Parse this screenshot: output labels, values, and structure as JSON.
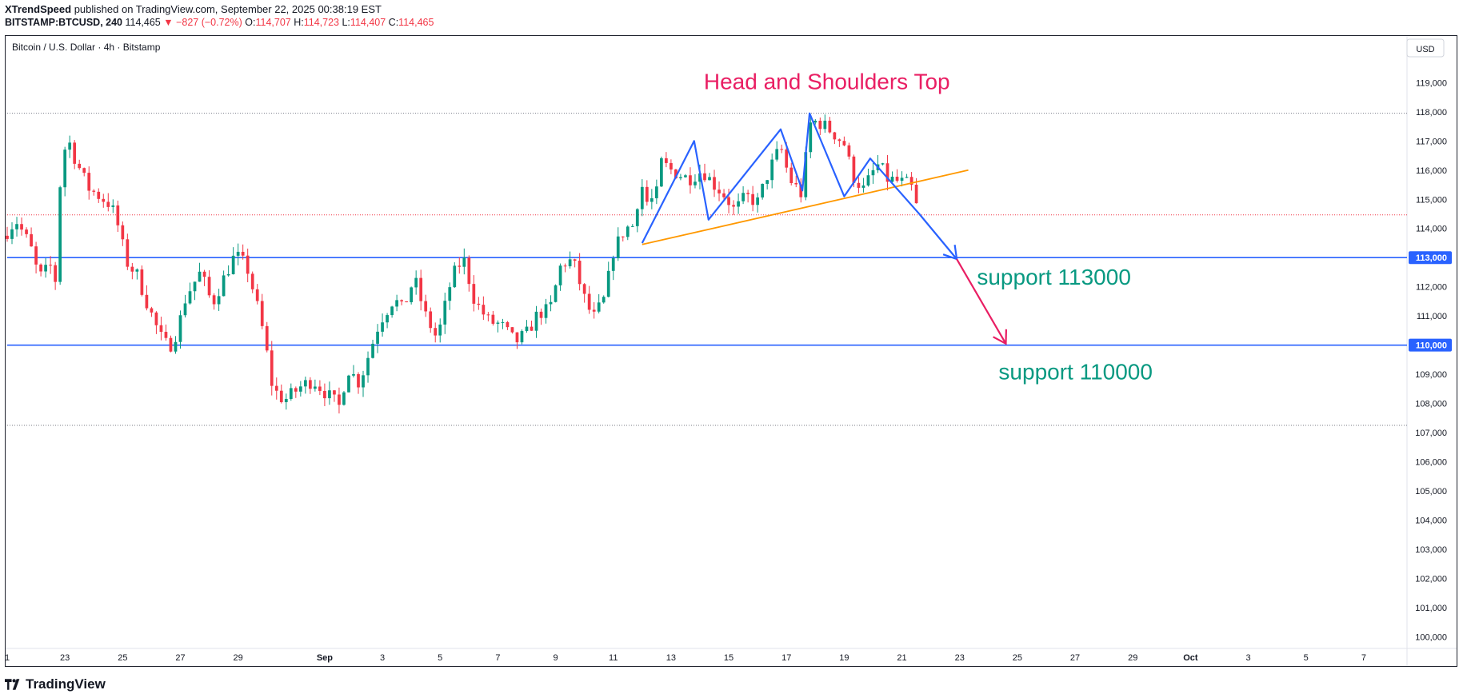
{
  "header": {
    "author": "XTrendSpeed",
    "published_text": "published on TradingView.com, September 22, 2025 00:38:19 EST",
    "symbol": "BITSTAMP:BTCUSD, 240",
    "last": "114,465",
    "change": "▼ −827 (−0.72%)",
    "o_label": "O:",
    "o_value": "114,707",
    "h_label": "H:",
    "h_value": "114,723",
    "l_label": "L:",
    "l_value": "114,407",
    "c_label": "C:",
    "c_value": "114,465"
  },
  "footer": {
    "brand": "TradingView"
  },
  "chart_data": {
    "type": "candlestick",
    "title": "Bitcoin / U.S. Dollar · 4h · Bitstamp",
    "currency": "USD",
    "ylim": [
      99600,
      120600
    ],
    "y_ticks": [
      100000,
      101000,
      102000,
      103000,
      104000,
      105000,
      106000,
      107000,
      108000,
      109000,
      110000,
      111000,
      112000,
      113000,
      114000,
      115000,
      116000,
      117000,
      118000,
      119000
    ],
    "y_tick_labels": [
      "100,000",
      "101,000",
      "102,000",
      "103,000",
      "104,000",
      "105,000",
      "106,000",
      "107,000",
      "108,000",
      "109,000",
      "110,000",
      "111,000",
      "112,000",
      "113,000",
      "114,000",
      "115,000",
      "116,000",
      "117,000",
      "118,000",
      "119,000"
    ],
    "x_range_days": [
      0,
      48.5
    ],
    "x_tick_days": [
      0,
      2,
      4,
      6,
      8,
      11,
      13,
      15,
      17,
      19,
      21,
      23,
      25,
      27,
      29,
      31,
      33,
      35,
      37,
      39,
      41,
      43,
      45,
      47
    ],
    "x_tick_labels": [
      "1",
      "23",
      "25",
      "27",
      "29",
      "Sep",
      "3",
      "5",
      "7",
      "9",
      "11",
      "13",
      "15",
      "17",
      "19",
      "21",
      "23",
      "25",
      "27",
      "29",
      "Oct",
      "3",
      "5",
      "7"
    ],
    "colors": {
      "up": "#089981",
      "down": "#f23645",
      "support": "#2962ff",
      "pattern": "#2962ff",
      "neckline": "#ff9800",
      "arrow": "#e91e63",
      "annotation_green": "#089981",
      "annotation_pink": "#e91e63"
    },
    "anchors": [
      [
        0,
        113900
      ],
      [
        0.3,
        114300
      ],
      [
        0.8,
        113400
      ],
      [
        1.1,
        112300
      ],
      [
        1.5,
        112700
      ],
      [
        1.75,
        112000
      ],
      [
        1.85,
        116200
      ],
      [
        2.1,
        117100
      ],
      [
        2.35,
        116400
      ],
      [
        2.8,
        115400
      ],
      [
        3.2,
        115100
      ],
      [
        3.6,
        114800
      ],
      [
        3.9,
        113900
      ],
      [
        4.1,
        112900
      ],
      [
        4.5,
        112400
      ],
      [
        4.9,
        111300
      ],
      [
        5.3,
        110300
      ],
      [
        5.6,
        109900
      ],
      [
        5.9,
        110500
      ],
      [
        6.2,
        111700
      ],
      [
        6.7,
        112500
      ],
      [
        7.1,
        111400
      ],
      [
        7.6,
        112500
      ],
      [
        7.9,
        113100
      ],
      [
        8.3,
        112700
      ],
      [
        8.6,
        111600
      ],
      [
        8.9,
        110300
      ],
      [
        9.2,
        108500
      ],
      [
        9.6,
        108100
      ],
      [
        10.2,
        108600
      ],
      [
        10.6,
        108800
      ],
      [
        11.0,
        108400
      ],
      [
        11.5,
        107900
      ],
      [
        11.8,
        109200
      ],
      [
        12.2,
        108700
      ],
      [
        12.6,
        109900
      ],
      [
        12.9,
        110800
      ],
      [
        13.4,
        111600
      ],
      [
        13.7,
        111200
      ],
      [
        14.1,
        112300
      ],
      [
        14.5,
        111000
      ],
      [
        14.9,
        110200
      ],
      [
        15.4,
        112300
      ],
      [
        15.8,
        113000
      ],
      [
        16.2,
        111500
      ],
      [
        16.7,
        110800
      ],
      [
        17.1,
        110700
      ],
      [
        17.6,
        110100
      ],
      [
        18.0,
        110400
      ],
      [
        18.4,
        111100
      ],
      [
        18.8,
        111200
      ],
      [
        19.2,
        112800
      ],
      [
        19.6,
        112900
      ],
      [
        20.0,
        111600
      ],
      [
        20.3,
        110900
      ],
      [
        20.7,
        111600
      ],
      [
        21.0,
        113200
      ],
      [
        21.4,
        114000
      ],
      [
        21.7,
        114100
      ],
      [
        21.95,
        115600
      ],
      [
        22.2,
        114800
      ],
      [
        22.5,
        115200
      ],
      [
        22.6,
        116300
      ],
      [
        23.0,
        116000
      ],
      [
        23.6,
        115700
      ],
      [
        24.1,
        116000
      ],
      [
        24.4,
        115600
      ],
      [
        24.9,
        115100
      ],
      [
        25.2,
        114600
      ],
      [
        25.6,
        115100
      ],
      [
        26.0,
        114900
      ],
      [
        26.4,
        116000
      ],
      [
        26.8,
        116800
      ],
      [
        27.1,
        115700
      ],
      [
        27.5,
        115200
      ],
      [
        27.85,
        117700
      ],
      [
        28.2,
        117600
      ],
      [
        28.6,
        117300
      ],
      [
        29.0,
        116900
      ],
      [
        29.3,
        115800
      ],
      [
        29.7,
        115300
      ],
      [
        29.9,
        115800
      ],
      [
        30.2,
        116200
      ],
      [
        30.5,
        115700
      ],
      [
        30.9,
        115600
      ],
      [
        31.3,
        115500
      ],
      [
        31.6,
        114400
      ]
    ],
    "resistance_lines": [
      117950,
      107250
    ],
    "last_price_line": 114465,
    "support_levels": [
      {
        "value": 113000,
        "label": "113,000"
      },
      {
        "value": 110000,
        "label": "110,000"
      }
    ],
    "annotations": {
      "pattern_title": "Head and Shoulders Top",
      "support_1": "support 113000",
      "support_2": "support 110000"
    },
    "pattern_path": [
      [
        22.0,
        113500
      ],
      [
        23.8,
        117000
      ],
      [
        24.3,
        114300
      ],
      [
        26.8,
        117400
      ],
      [
        27.55,
        115300
      ],
      [
        27.8,
        117950
      ],
      [
        29.0,
        115100
      ],
      [
        29.9,
        116400
      ],
      [
        31.6,
        114500
      ],
      [
        32.9,
        112950
      ]
    ],
    "neckline": [
      [
        22.0,
        113450
      ],
      [
        33.3,
        116000
      ]
    ],
    "forecast_arrow_1": [
      [
        31.6,
        114500
      ],
      [
        32.9,
        112950
      ]
    ],
    "forecast_arrow_2": [
      [
        32.9,
        112950
      ],
      [
        34.6,
        110050
      ]
    ]
  }
}
